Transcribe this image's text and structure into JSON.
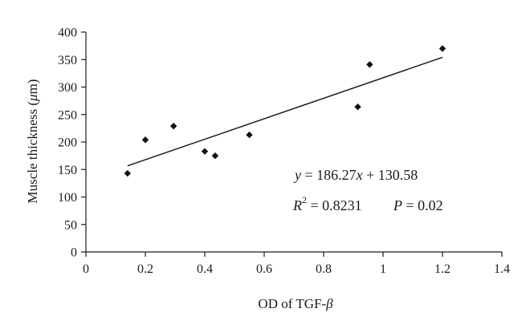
{
  "chart_data": {
    "type": "scatter",
    "xlabel": "OD of TGF-",
    "xlabel_symbol": "β",
    "ylabel": "Muscle thickness (",
    "ylabel_symbol": "μ",
    "ylabel_unit": "m)",
    "xlim": [
      0,
      1.4
    ],
    "ylim": [
      0,
      400
    ],
    "x_ticks": [
      0,
      0.2,
      0.4,
      0.6,
      0.8,
      1,
      1.2,
      1.4
    ],
    "x_tick_labels": [
      "0",
      "0.2",
      "0.4",
      "0.6",
      "0.8",
      "1",
      "1.2",
      "1.4"
    ],
    "y_ticks": [
      0,
      50,
      100,
      150,
      200,
      250,
      300,
      350,
      400
    ],
    "y_tick_labels": [
      "0",
      "50",
      "100",
      "150",
      "200",
      "250",
      "300",
      "350",
      "400"
    ],
    "grid": false,
    "marker": "diamond",
    "points": [
      {
        "x": 0.14,
        "y": 143
      },
      {
        "x": 0.2,
        "y": 204
      },
      {
        "x": 0.295,
        "y": 229
      },
      {
        "x": 0.4,
        "y": 183
      },
      {
        "x": 0.435,
        "y": 175
      },
      {
        "x": 0.55,
        "y": 213
      },
      {
        "x": 0.915,
        "y": 264
      },
      {
        "x": 0.955,
        "y": 341
      },
      {
        "x": 1.2,
        "y": 370
      }
    ],
    "trendline": {
      "slope": 186.27,
      "intercept": 130.58,
      "x_range": [
        0.14,
        1.2
      ]
    },
    "annotations": {
      "equation": {
        "y_var": "y",
        "eq": " = 186.27",
        "x_var": "x",
        "rest": " + 130.58"
      },
      "stats": {
        "r_var": "R",
        "r_exp": "2",
        "r_val": " = 0.8231",
        "p_var": "P",
        "p_val": " = 0.02"
      }
    }
  }
}
